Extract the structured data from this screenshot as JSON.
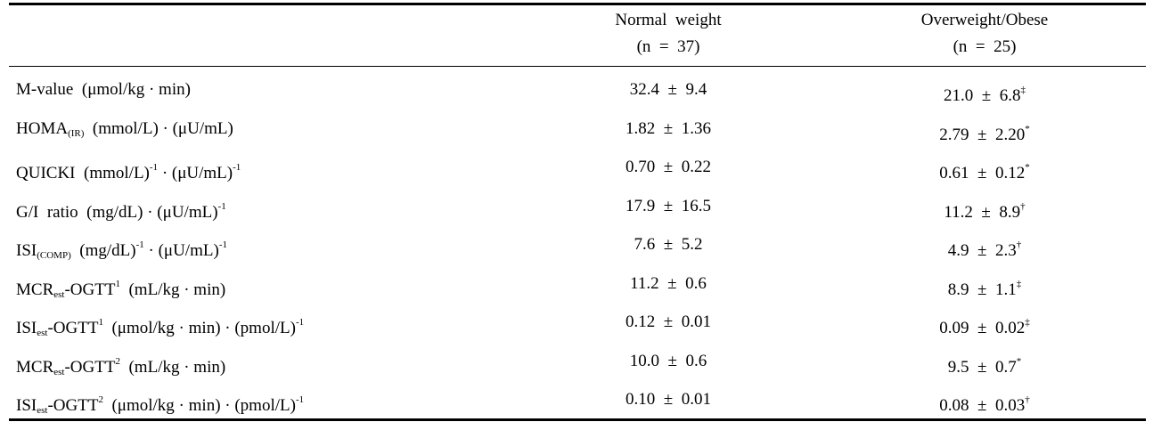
{
  "table": {
    "columns": [
      {
        "line1": "Normal  weight",
        "line2": "(n  =  37)"
      },
      {
        "line1": "Overweight/Obese",
        "line2": "(n  =  25)"
      }
    ],
    "rows": [
      {
        "main": "M-value",
        "sub": "",
        "sup": "",
        "suffix": "",
        "unit": "  (μmol/kg · min)",
        "unit_sup": "",
        "unit_b": "",
        "unit_b_sup": "",
        "normal": "32.4  ±  9.4",
        "over": "21.0  ±  6.8",
        "over_mark": "‡"
      },
      {
        "main": "HOMA",
        "sub": "(IR)",
        "sup": "",
        "suffix": "",
        "unit": "  (mmol/L) · (μU/mL)",
        "unit_sup": "",
        "unit_b": "",
        "unit_b_sup": "",
        "normal": "1.82  ±  1.36",
        "over": "2.79  ±  2.20",
        "over_mark": "*"
      },
      {
        "main": "QUICKI",
        "sub": "",
        "sup": "",
        "suffix": "",
        "unit": "  (mmol/L)",
        "unit_sup": "-1",
        "unit_b": " · (μU/mL)",
        "unit_b_sup": "-1",
        "normal": "0.70  ±  0.22",
        "over": "0.61  ±  0.12",
        "over_mark": "*"
      },
      {
        "main": "G/I  ratio",
        "sub": "",
        "sup": "",
        "suffix": "",
        "unit": "  (mg/dL) · (μU/mL)",
        "unit_sup": "-1",
        "unit_b": "",
        "unit_b_sup": "",
        "normal": "17.9  ±  16.5",
        "over": "11.2  ±  8.9",
        "over_mark": "†"
      },
      {
        "main": "ISI",
        "sub": "(COMP)",
        "sup": "",
        "suffix": "",
        "unit": "  (mg/dL)",
        "unit_sup": "-1",
        "unit_b": " · (μU/mL)",
        "unit_b_sup": "-1",
        "normal": "7.6  ±  5.2",
        "over": "4.9  ±  2.3",
        "over_mark": "†"
      },
      {
        "main": "MCR",
        "sub": "est",
        "sup": "",
        "suffix": "-OGTT",
        "suffix_sup": "1",
        "unit": "  (mL/kg · min)",
        "unit_sup": "",
        "unit_b": "",
        "unit_b_sup": "",
        "normal": "11.2  ±  0.6",
        "over": "8.9  ±  1.1",
        "over_mark": "‡"
      },
      {
        "main": "ISI",
        "sub": "est",
        "sup": "",
        "suffix": "-OGTT",
        "suffix_sup": "1",
        "unit": "  (μmol/kg · min) · (pmol/L)",
        "unit_sup": "-1",
        "unit_b": "",
        "unit_b_sup": "",
        "normal": "0.12  ±  0.01",
        "over": "0.09  ±  0.02",
        "over_mark": "‡"
      },
      {
        "main": "MCR",
        "sub": "est",
        "sup": "",
        "suffix": "-OGTT",
        "suffix_sup": "2",
        "unit": "  (mL/kg · min)",
        "unit_sup": "",
        "unit_b": "",
        "unit_b_sup": "",
        "normal": "10.0  ±  0.6",
        "over": "9.5  ±  0.7",
        "over_mark": "*"
      },
      {
        "main": "ISI",
        "sub": "est",
        "sup": "",
        "suffix": "-OGTT",
        "suffix_sup": "2",
        "unit": "  (μmol/kg · min) · (pmol/L)",
        "unit_sup": "-1",
        "unit_b": "",
        "unit_b_sup": "",
        "normal": "0.10  ±  0.01",
        "over": "0.08  ±  0.03",
        "over_mark": "†"
      }
    ]
  }
}
